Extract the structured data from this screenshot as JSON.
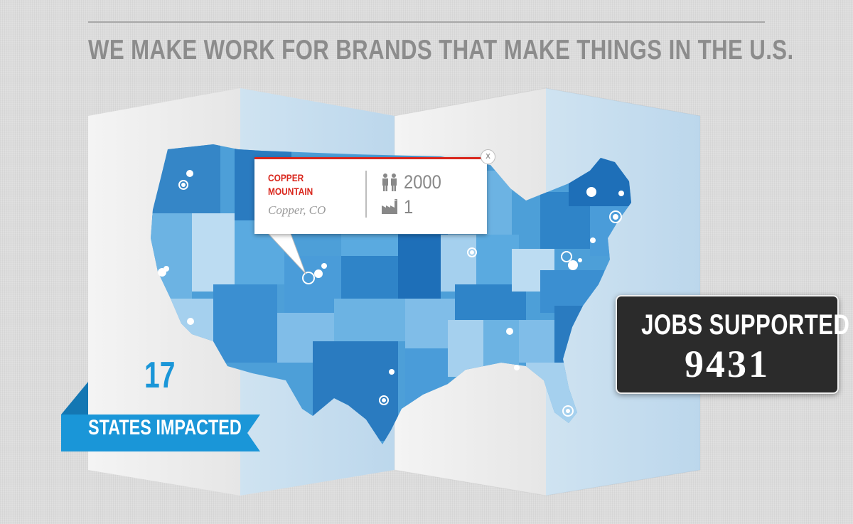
{
  "header": {
    "headline": "WE MAKE WORK FOR BRANDS THAT MAKE THINGS IN THE U.S."
  },
  "popup": {
    "name": "COPPER MOUNTAIN",
    "location": "Copper, CO",
    "jobs": "2000",
    "factories": "1",
    "close_label": "x"
  },
  "stats": {
    "states_count": "17",
    "states_label": "STATES IMPACTED",
    "jobs_title": "JOBS SUPPORTED",
    "jobs_value": "9431"
  },
  "icons": {
    "jobs": "people-icon",
    "factories": "factory-icon",
    "markers": "location-marker-icon"
  },
  "colors": {
    "accent_red": "#d9261c",
    "ribbon_blue": "#1a96d8",
    "map_blue": "#3a8fd0",
    "headline_gray": "#8c8c8c",
    "dark_box": "#2b2b2b"
  }
}
